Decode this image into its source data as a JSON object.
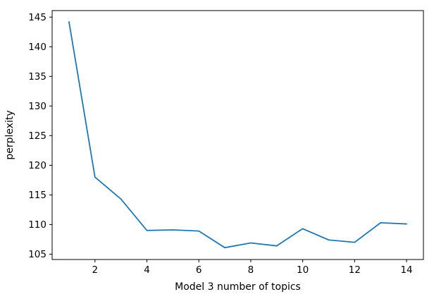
{
  "chart_data": {
    "type": "line",
    "title": "",
    "xlabel": "Model 3 number of topics",
    "ylabel": "perplexity",
    "x": [
      1,
      2,
      3,
      4,
      5,
      6,
      7,
      8,
      9,
      10,
      11,
      12,
      13,
      14
    ],
    "values": [
      144.2,
      118.0,
      114.3,
      109.0,
      109.1,
      108.9,
      106.1,
      106.9,
      106.4,
      109.3,
      107.4,
      107.0,
      110.3,
      110.1
    ],
    "series_name": "perplexity",
    "line_color": "#1f77b4",
    "xticks": [
      2,
      4,
      6,
      8,
      10,
      12,
      14
    ],
    "yticks": [
      105,
      110,
      115,
      120,
      125,
      130,
      135,
      140,
      145
    ],
    "xlim": [
      0.35,
      14.65
    ],
    "ylim": [
      104.1,
      146.1
    ],
    "grid": false,
    "legend_position": "none",
    "spine_color": "#000000",
    "background_color": "#ffffff"
  }
}
